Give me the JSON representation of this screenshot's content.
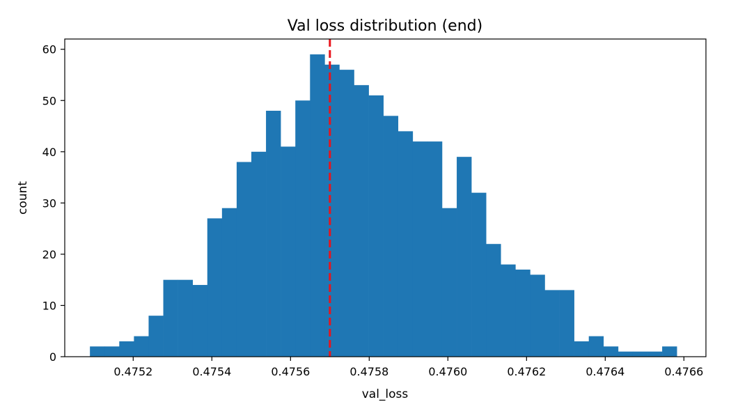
{
  "chart_data": {
    "type": "bar",
    "title": "Val loss distribution (end)",
    "xlabel": "val_loss",
    "ylabel": "count",
    "xlim": [
      0.475026,
      0.476656
    ],
    "ylim": [
      0,
      62
    ],
    "xticks": [
      0.4752,
      0.4754,
      0.4756,
      0.4758,
      0.476,
      0.4762,
      0.4764,
      0.4766
    ],
    "xtick_labels": [
      "0.4752",
      "0.4754",
      "0.4756",
      "0.4758",
      "0.4760",
      "0.4762",
      "0.4764",
      "0.4766"
    ],
    "yticks": [
      0,
      10,
      20,
      30,
      40,
      50,
      60
    ],
    "ytick_labels": [
      "0",
      "10",
      "20",
      "30",
      "40",
      "50",
      "60"
    ],
    "bin_start": 0.47509,
    "bin_width": 3.73e-05,
    "counts": [
      2,
      2,
      3,
      4,
      8,
      15,
      15,
      14,
      27,
      29,
      38,
      40,
      48,
      41,
      50,
      59,
      57,
      56,
      53,
      51,
      47,
      44,
      42,
      42,
      29,
      39,
      32,
      22,
      18,
      17,
      16,
      13,
      13,
      3,
      4,
      2,
      1,
      1,
      1,
      2
    ],
    "mean_line": {
      "x": 0.4757,
      "color": "#e8141c",
      "style": "dashed"
    },
    "bar_color": "#1f77b4",
    "grid": false,
    "legend": "none"
  }
}
